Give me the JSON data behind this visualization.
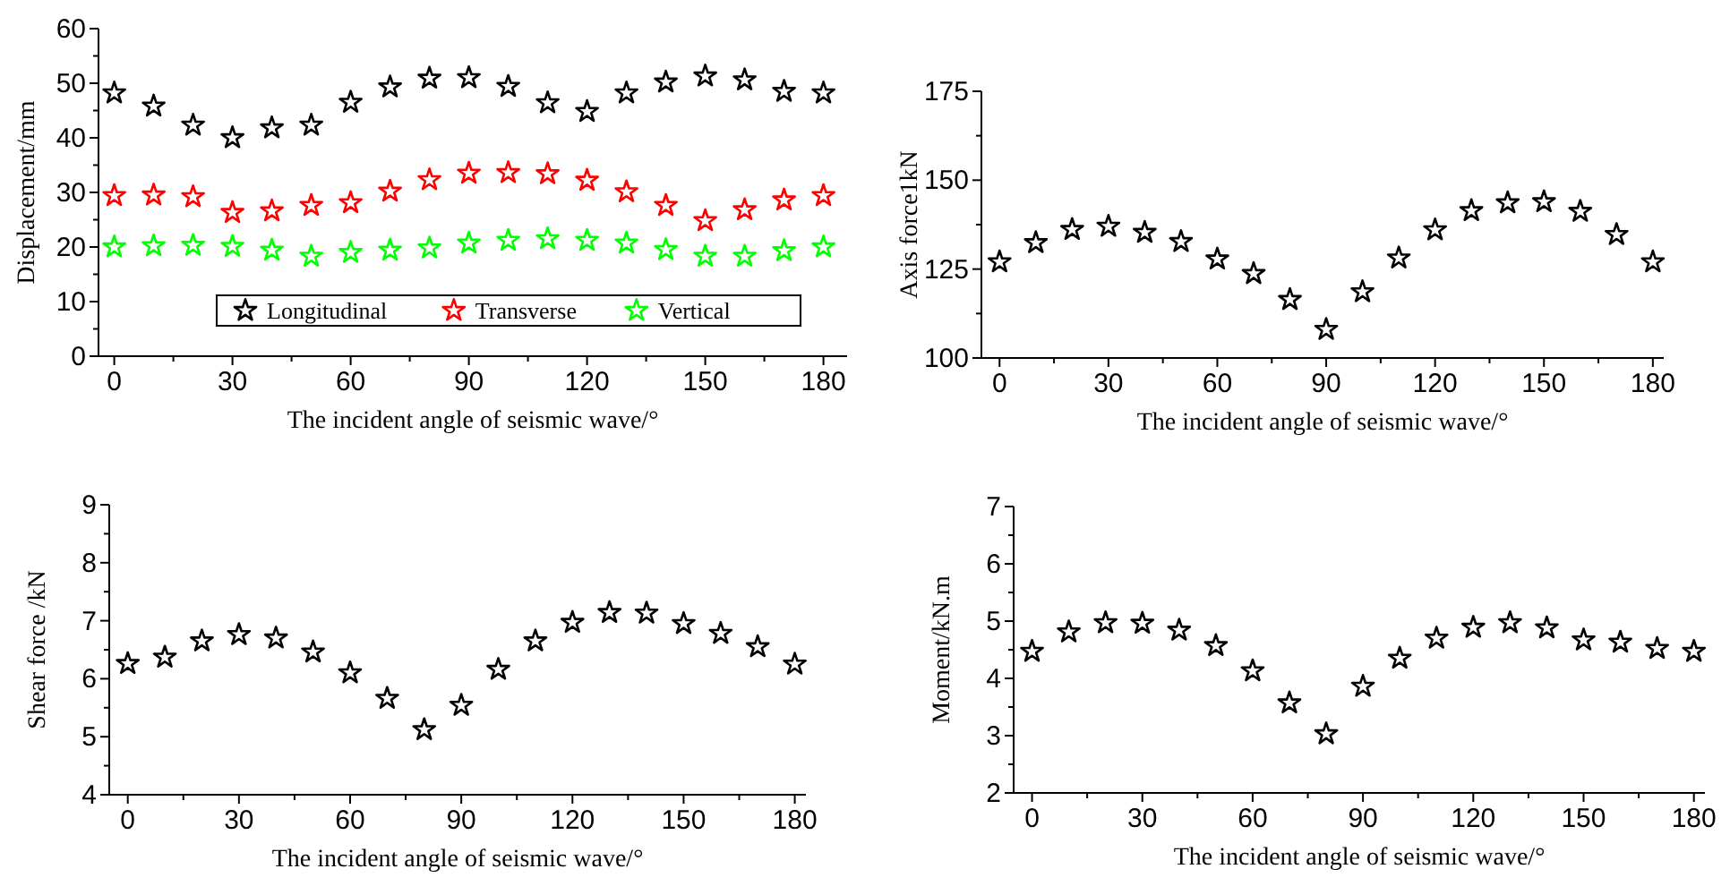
{
  "chart_data": [
    {
      "type": "scatter",
      "marker": "star",
      "legend": "bottom",
      "grid": false,
      "xlabel": "The incident angle of  seismic wave/°",
      "ylabel": "Displacement/mm",
      "x": [
        0,
        10,
        20,
        30,
        40,
        50,
        60,
        70,
        80,
        90,
        100,
        110,
        120,
        130,
        140,
        150,
        160,
        170,
        180
      ],
      "xlim": [
        -4,
        186
      ],
      "xticks": [
        0,
        {
          "value": 15,
          "label": null
        },
        30,
        {
          "value": 45,
          "label": null
        },
        60,
        {
          "value": 75,
          "label": null
        },
        90,
        {
          "value": 105,
          "label": null
        },
        120,
        {
          "value": 135,
          "label": null
        },
        150,
        {
          "value": 165,
          "label": null
        },
        180
      ],
      "ylim": [
        0,
        60
      ],
      "yticks": [
        0,
        {
          "value": 5,
          "label": null
        },
        10,
        {
          "value": 15,
          "label": null
        },
        20,
        {
          "value": 25,
          "label": null
        },
        30,
        {
          "value": 35,
          "label": null
        },
        40,
        {
          "value": 45,
          "label": null
        },
        50,
        {
          "value": 55,
          "label": null
        },
        60
      ],
      "series": [
        {
          "name": "Longitudinal",
          "color": "#000000",
          "values": [
            48.2,
            45.8,
            42.3,
            40.0,
            41.8,
            42.3,
            46.5,
            49.3,
            50.9,
            51.0,
            49.4,
            46.4,
            44.8,
            48.2,
            50.2,
            51.3,
            50.6,
            48.5,
            48.2
          ]
        },
        {
          "name": "Transverse",
          "color": "#ff0000",
          "values": [
            29.4,
            29.5,
            29.2,
            26.3,
            26.6,
            27.6,
            28.1,
            30.2,
            32.3,
            33.5,
            33.6,
            33.4,
            32.2,
            30.1,
            27.6,
            24.8,
            26.8,
            28.6,
            29.4
          ]
        },
        {
          "name": "Vertical",
          "color": "#00ff00",
          "values": [
            20.0,
            20.2,
            20.3,
            20.1,
            19.4,
            18.3,
            19.0,
            19.4,
            19.8,
            20.7,
            21.2,
            21.5,
            21.2,
            20.7,
            19.5,
            18.3,
            18.3,
            19.3,
            20.0
          ]
        }
      ]
    },
    {
      "type": "scatter",
      "marker": "star",
      "grid": false,
      "xlabel": "The incident angle of  seismic wave/°",
      "ylabel": "Axis force1kN",
      "x": [
        0,
        10,
        20,
        30,
        40,
        50,
        60,
        70,
        80,
        90,
        100,
        110,
        120,
        130,
        140,
        150,
        160,
        170,
        180
      ],
      "xlim": [
        -5,
        183
      ],
      "xticks": [
        0,
        {
          "value": 15,
          "label": null
        },
        30,
        {
          "value": 45,
          "label": null
        },
        60,
        {
          "value": 75,
          "label": null
        },
        90,
        {
          "value": 105,
          "label": null
        },
        120,
        {
          "value": 135,
          "label": null
        },
        150,
        {
          "value": 165,
          "label": null
        },
        180
      ],
      "ylim": [
        100,
        175
      ],
      "yticks": [
        100,
        {
          "value": 112.5,
          "label": null
        },
        125,
        {
          "value": 137.5,
          "label": null
        },
        150,
        {
          "value": 162.5,
          "label": null
        },
        175
      ],
      "series": [
        {
          "color": "#000000",
          "values": [
            127,
            132.4,
            136.1,
            137,
            135.3,
            132.7,
            127.8,
            123.7,
            116.4,
            108,
            118.6,
            128.1,
            136,
            141.4,
            143.6,
            143.9,
            141.2,
            134.7,
            127
          ]
        }
      ]
    },
    {
      "type": "scatter",
      "marker": "star",
      "grid": false,
      "xlabel": "The incident angle of seismic wave/°",
      "ylabel": "Shear force /kN",
      "x": [
        0,
        10,
        20,
        30,
        40,
        50,
        60,
        70,
        80,
        90,
        100,
        110,
        120,
        130,
        140,
        150,
        160,
        170,
        180
      ],
      "xlim": [
        -5,
        183
      ],
      "xticks": [
        0,
        {
          "value": 15,
          "label": null
        },
        30,
        {
          "value": 45,
          "label": null
        },
        60,
        {
          "value": 75,
          "label": null
        },
        90,
        {
          "value": 105,
          "label": null
        },
        120,
        {
          "value": 135,
          "label": null
        },
        150,
        {
          "value": 165,
          "label": null
        },
        180
      ],
      "ylim": [
        4,
        9
      ],
      "yticks": [
        4,
        {
          "value": 4.5,
          "label": null
        },
        5,
        {
          "value": 5.5,
          "label": null
        },
        6,
        {
          "value": 6.5,
          "label": null
        },
        7,
        {
          "value": 7.5,
          "label": null
        },
        8,
        {
          "value": 8.5,
          "label": null
        },
        9
      ],
      "series": [
        {
          "color": "#000000",
          "values": [
            6.26,
            6.37,
            6.65,
            6.76,
            6.7,
            6.46,
            6.1,
            5.66,
            5.12,
            5.54,
            6.16,
            6.65,
            6.97,
            7.14,
            7.13,
            6.95,
            6.78,
            6.55,
            6.25
          ]
        }
      ]
    },
    {
      "type": "scatter",
      "marker": "star",
      "grid": false,
      "xlabel": "The incident angle of seismic wave/°",
      "ylabel": "Moment/kN.m",
      "x": [
        0,
        10,
        20,
        30,
        40,
        50,
        60,
        70,
        80,
        90,
        100,
        110,
        120,
        130,
        140,
        150,
        160,
        170,
        180
      ],
      "xlim": [
        -5,
        183
      ],
      "xticks": [
        0,
        {
          "value": 15,
          "label": null
        },
        30,
        {
          "value": 45,
          "label": null
        },
        60,
        {
          "value": 75,
          "label": null
        },
        90,
        {
          "value": 105,
          "label": null
        },
        120,
        {
          "value": 135,
          "label": null
        },
        150,
        {
          "value": 165,
          "label": null
        },
        180
      ],
      "ylim": [
        2,
        7
      ],
      "yticks": [
        2,
        {
          "value": 2.5,
          "label": null
        },
        3,
        {
          "value": 3.5,
          "label": null
        },
        4,
        {
          "value": 4.5,
          "label": null
        },
        5,
        {
          "value": 5.5,
          "label": null
        },
        6,
        {
          "value": 6.5,
          "label": null
        },
        7
      ],
      "series": [
        {
          "color": "#000000",
          "values": [
            4.47,
            4.81,
            4.97,
            4.96,
            4.84,
            4.57,
            4.13,
            3.57,
            3.03,
            3.86,
            4.35,
            4.7,
            4.89,
            4.97,
            4.88,
            4.67,
            4.63,
            4.52,
            4.47
          ]
        }
      ]
    }
  ]
}
